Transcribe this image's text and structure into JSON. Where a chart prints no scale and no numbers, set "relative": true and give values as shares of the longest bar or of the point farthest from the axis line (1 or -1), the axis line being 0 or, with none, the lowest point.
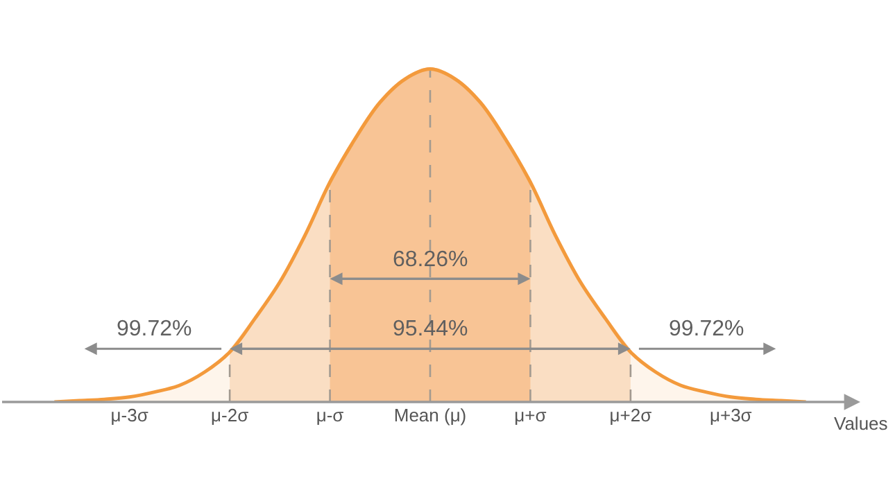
{
  "chart_data": {
    "type": "area",
    "relative": true,
    "xlabel": "Values",
    "categories": [
      null,
      null,
      null,
      "μ-3σ",
      null,
      null,
      null,
      "μ-2σ",
      null,
      null,
      null,
      "μ-σ",
      null,
      null,
      null,
      "Mean (μ)",
      null,
      null,
      null,
      "μ+σ",
      null,
      null,
      null,
      "μ+2σ",
      null,
      null,
      null,
      "μ+3σ",
      null,
      null,
      null
    ],
    "series": [
      {
        "color": "#f39a3c",
        "values": [
          0,
          0.004,
          0.008,
          0.015,
          0.03,
          0.05,
          0.09,
          0.15,
          0.25,
          0.36,
          0.5,
          0.66,
          0.79,
          0.9,
          0.97,
          1,
          0.97,
          0.9,
          0.79,
          0.66,
          0.5,
          0.36,
          0.25,
          0.15,
          0.09,
          0.05,
          0.03,
          0.015,
          0.008,
          0.004,
          0
        ]
      },
      {
        "color": "#fbe6d3",
        "values": [
          null,
          null,
          null,
          null,
          null,
          null,
          null,
          0.15,
          0.25,
          0.36,
          0.5,
          0.66,
          0.79,
          0.9,
          0.97,
          1,
          0.97,
          0.9,
          0.79,
          0.66,
          0.5,
          0.36,
          0.25,
          0.15,
          null,
          null,
          null,
          null,
          null,
          null,
          null
        ]
      },
      {
        "color": "#f9c9a0",
        "values": [
          null,
          null,
          null,
          null,
          null,
          null,
          null,
          null,
          null,
          null,
          null,
          0.66,
          0.79,
          0.9,
          0.97,
          1,
          0.97,
          0.9,
          0.79,
          0.66,
          null,
          null,
          null,
          null,
          null,
          null,
          null,
          null,
          null,
          null,
          null
        ]
      }
    ],
    "ref_lines": [
      {
        "axis": "x",
        "value": "μ-2σ",
        "color": "#9a9a9a",
        "line_style": "dashed"
      },
      {
        "axis": "x",
        "value": "μ-σ",
        "color": "#9a9a9a",
        "line_style": "dashed"
      },
      {
        "axis": "x",
        "value": "Mean (μ)",
        "color": "#9a9a9a",
        "line_style": "dashed"
      },
      {
        "axis": "x",
        "value": "μ+σ",
        "color": "#9a9a9a",
        "line_style": "dashed"
      },
      {
        "axis": "x",
        "value": "μ+2σ",
        "color": "#9a9a9a",
        "line_style": "dashed"
      }
    ],
    "annotations": [
      "68.26%",
      "95.44%",
      "99.72%",
      "99.72%"
    ]
  }
}
